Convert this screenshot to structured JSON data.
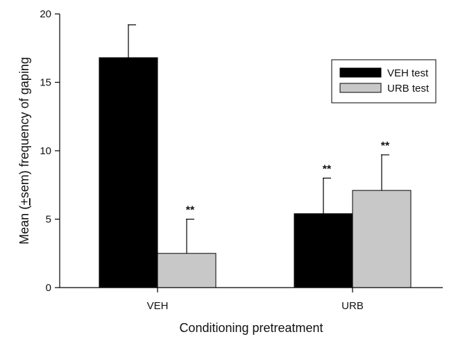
{
  "chart_data": {
    "type": "bar",
    "categories": [
      "VEH",
      "URB"
    ],
    "series": [
      {
        "name": "VEH test",
        "values": [
          16.8,
          5.4
        ],
        "errors": [
          2.4,
          2.6
        ],
        "significance": [
          "",
          "**"
        ],
        "color": "#000000"
      },
      {
        "name": "URB test",
        "values": [
          2.5,
          7.1
        ],
        "errors": [
          2.5,
          2.6
        ],
        "significance": [
          "**",
          "**"
        ],
        "color": "#c8c8c8"
      }
    ],
    "xlabel": "Conditioning pretreatment",
    "ylabel_parts": [
      "Mean (",
      "+",
      "sem) frequency of gaping"
    ],
    "ylim": [
      0,
      20
    ],
    "yticks": [
      0,
      5,
      10,
      15,
      20
    ],
    "grid": false,
    "legend_position": "top-right"
  }
}
